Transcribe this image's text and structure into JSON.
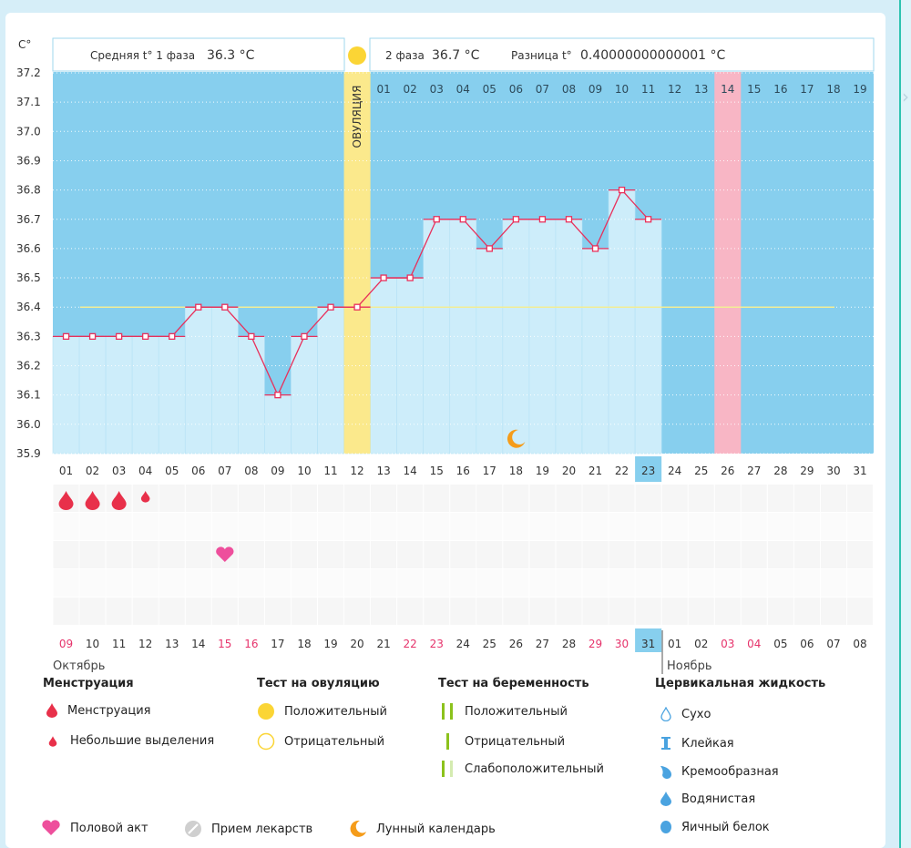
{
  "header": {
    "unit": "C°",
    "phase1_label": "Средняя t° 1 фаза",
    "phase1_value": "36.3 °C",
    "phase2_label": "2 фаза",
    "phase2_value": "36.7 °C",
    "diff_label": "Разница t°",
    "diff_value": "0.40000000000001 °C"
  },
  "ovulation_label": "ОВУЛЯЦИЯ",
  "chart_data": {
    "type": "line",
    "title": "",
    "ylabel": "C°",
    "ylim": [
      35.9,
      37.2
    ],
    "y_ticks": [
      "37.2",
      "37.1",
      "37.0",
      "36.9",
      "36.8",
      "36.7",
      "36.6",
      "36.5",
      "36.4",
      "36.3",
      "36.2",
      "36.1",
      "36.0",
      "35.9"
    ],
    "coverline": 36.4,
    "cycle_days": [
      "01",
      "02",
      "03",
      "04",
      "05",
      "06",
      "07",
      "08",
      "09",
      "10",
      "11",
      "12",
      "13",
      "14",
      "15",
      "16",
      "17",
      "18",
      "19",
      "20",
      "21",
      "22",
      "23",
      "24",
      "25",
      "26",
      "27",
      "28",
      "29",
      "30",
      "31"
    ],
    "phase2_days": [
      "01",
      "02",
      "03",
      "04",
      "05",
      "06",
      "07",
      "08",
      "09",
      "10",
      "11",
      "12",
      "13",
      "14",
      "15",
      "16",
      "17",
      "18",
      "19"
    ],
    "ovulation_day_index": 11,
    "expected_period_index": 25,
    "today_index": 22,
    "temperatures": [
      36.3,
      36.3,
      36.3,
      36.3,
      36.3,
      36.4,
      36.4,
      36.3,
      36.1,
      36.3,
      36.4,
      36.4,
      36.5,
      36.5,
      36.7,
      36.7,
      36.6,
      36.7,
      36.7,
      36.7,
      36.6,
      36.8,
      36.7
    ],
    "dates": [
      "09",
      "10",
      "11",
      "12",
      "13",
      "14",
      "15",
      "16",
      "17",
      "18",
      "19",
      "20",
      "21",
      "22",
      "23",
      "24",
      "25",
      "26",
      "27",
      "28",
      "29",
      "30",
      "31",
      "01",
      "02",
      "03",
      "04",
      "05",
      "06",
      "07",
      "08"
    ],
    "red_date_indices": [
      0,
      6,
      7,
      13,
      14,
      20,
      21,
      25,
      26
    ],
    "months": [
      "Октябрь",
      "Ноябрь"
    ],
    "moon_index": 17,
    "menstruation": [
      {
        "index": 0,
        "size": "large"
      },
      {
        "index": 1,
        "size": "large"
      },
      {
        "index": 2,
        "size": "large"
      },
      {
        "index": 3,
        "size": "small"
      }
    ],
    "intercourse_index": 6
  },
  "legend": {
    "menstruation": {
      "title": "Менструация",
      "items": [
        "Менструация",
        "Небольшие выделения"
      ]
    },
    "ovulation_test": {
      "title": "Тест на овуляцию",
      "items": [
        "Положительный",
        "Отрицательный"
      ]
    },
    "pregnancy_test": {
      "title": "Тест на беременность",
      "items": [
        "Положительный",
        "Отрицательный",
        "Слабоположительный"
      ]
    },
    "cervical": {
      "title": "Цервикальная жидкость",
      "items": [
        "Сухо",
        "Клейкая",
        "Кремообразная",
        "Водянистая",
        "Яичный белок"
      ]
    },
    "bottom": {
      "items": [
        "Половой акт",
        "Прием лекарств",
        "Лунный календарь"
      ]
    }
  },
  "colors": {
    "plot_bg": "#87cfee",
    "bar": "#cdedfa",
    "ovulation": "#fbe98c",
    "ovulation_dot": "#fbd535",
    "period": "#f8b6c5",
    "line": "#e8305b",
    "coverline": "#f2ed96",
    "today": "#87cfee",
    "drop": "#e8304a",
    "heart": "#ee4f9c",
    "moon": "#f59c1a",
    "test_green": "#8cc21c"
  }
}
